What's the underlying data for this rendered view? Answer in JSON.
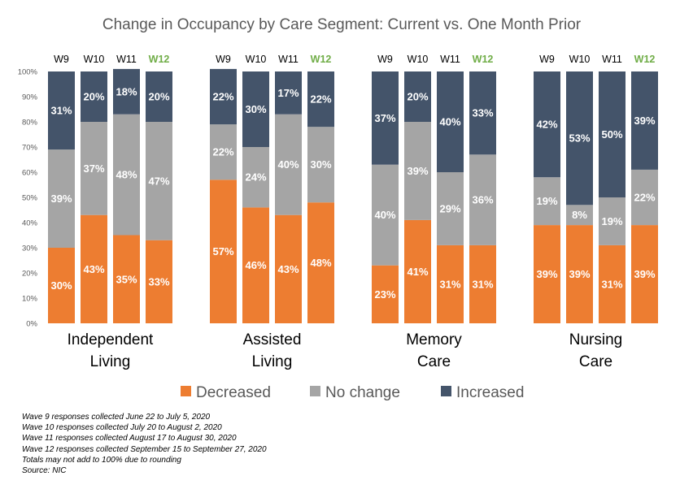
{
  "chart_data": {
    "type": "bar",
    "stacked": true,
    "title": "Change in Occupancy by Care Segment: Current vs. One Month Prior",
    "ylim": [
      0,
      100
    ],
    "yticks": [
      "0%",
      "10%",
      "20%",
      "30%",
      "40%",
      "50%",
      "60%",
      "70%",
      "80%",
      "90%",
      "100%"
    ],
    "waves": [
      "W9",
      "W10",
      "W11",
      "W12"
    ],
    "highlight_wave": "W12",
    "legend_position": "bottom",
    "groups": [
      {
        "name_lines": [
          "Independent",
          "Living"
        ],
        "series": [
          {
            "name": "Decreased",
            "values": [
              30,
              43,
              35,
              33
            ]
          },
          {
            "name": "No change",
            "values": [
              39,
              37,
              48,
              47
            ]
          },
          {
            "name": "Increased",
            "values": [
              31,
              20,
              18,
              20
            ]
          }
        ]
      },
      {
        "name_lines": [
          "Assisted",
          "Living"
        ],
        "series": [
          {
            "name": "Decreased",
            "values": [
              57,
              46,
              43,
              48
            ]
          },
          {
            "name": "No change",
            "values": [
              22,
              24,
              40,
              30
            ]
          },
          {
            "name": "Increased",
            "values": [
              22,
              30,
              17,
              22
            ]
          }
        ]
      },
      {
        "name_lines": [
          "Memory",
          "Care"
        ],
        "series": [
          {
            "name": "Decreased",
            "values": [
              23,
              41,
              31,
              31
            ]
          },
          {
            "name": "No change",
            "values": [
              40,
              39,
              29,
              36
            ]
          },
          {
            "name": "Increased",
            "values": [
              37,
              20,
              40,
              33
            ]
          }
        ]
      },
      {
        "name_lines": [
          "Nursing",
          "Care"
        ],
        "series": [
          {
            "name": "Decreased",
            "values": [
              39,
              39,
              31,
              39
            ]
          },
          {
            "name": "No change",
            "values": [
              19,
              8,
              19,
              22
            ]
          },
          {
            "name": "Increased",
            "values": [
              42,
              53,
              50,
              39
            ]
          }
        ]
      }
    ],
    "legend": [
      {
        "name": "Decreased",
        "color": "#ED7D31"
      },
      {
        "name": "No change",
        "color": "#A5A5A5"
      },
      {
        "name": "Increased",
        "color": "#44546A"
      }
    ],
    "highlight_color": "#70AD47"
  },
  "notes": [
    "Wave 9 responses collected June 22 to July 5, 2020",
    "Wave 10 responses collected July 20 to August 2, 2020",
    "Wave 11 responses collected August 17 to August 30, 2020",
    "Wave 12 responses collected September 15 to September 27, 2020",
    "Totals may not add to 100% due to rounding",
    "Source: NIC"
  ]
}
